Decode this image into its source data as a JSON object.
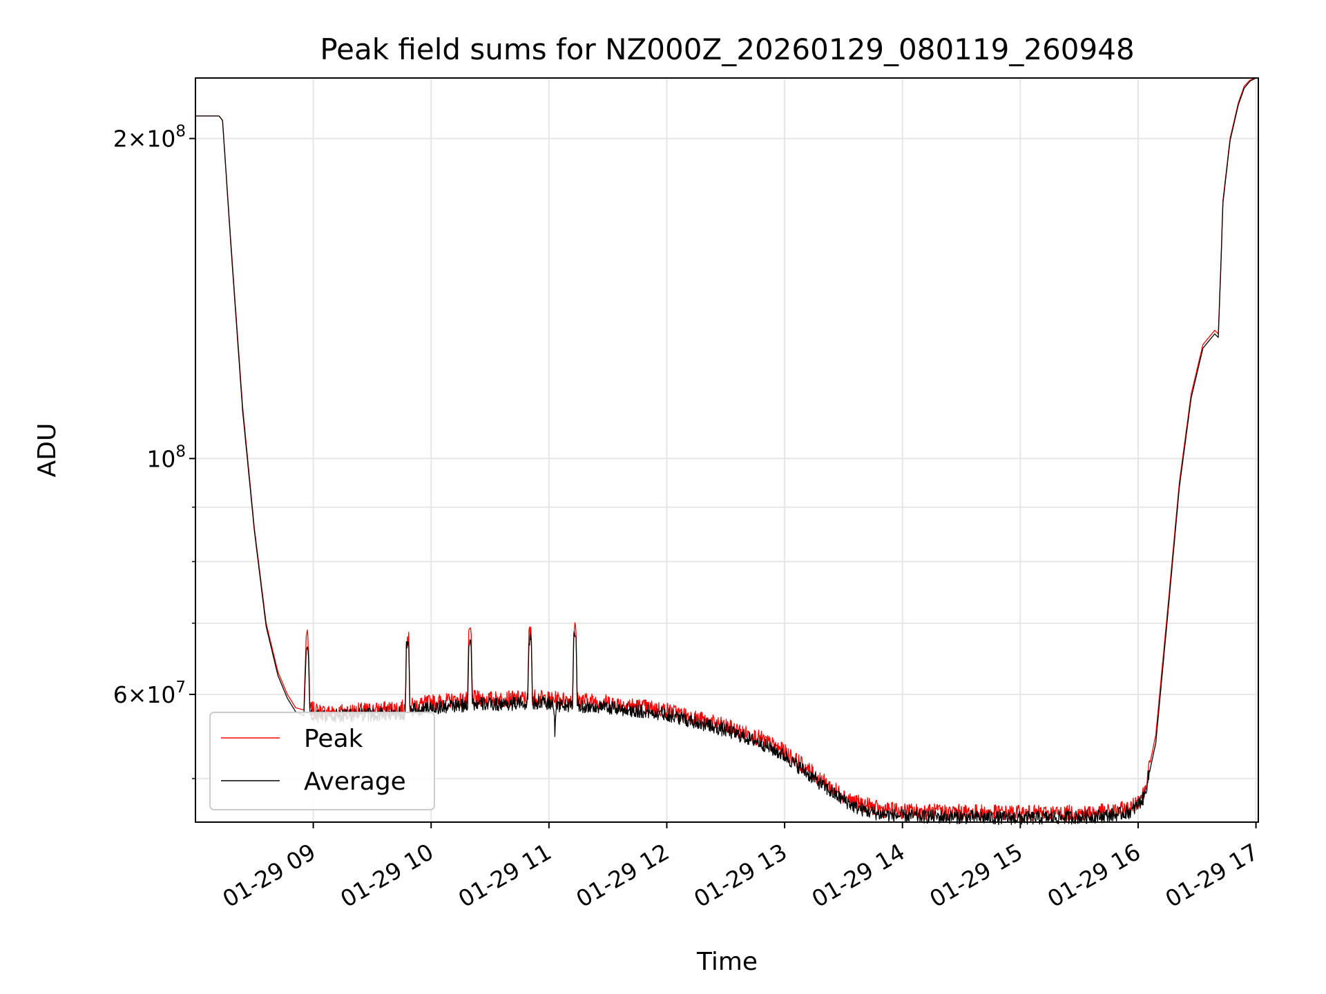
{
  "chart_data": {
    "type": "line",
    "title": "Peak field sums for NZ000Z_20260129_080119_260948",
    "xlabel": "Time",
    "ylabel": "ADU",
    "yscale": "log",
    "grid": true,
    "legend_position": "lower-left",
    "xlim_hours": [
      8.0,
      17.02
    ],
    "ylim": [
      45500000,
      228000000
    ],
    "x_ticks": [
      {
        "hour": 9,
        "label": "01-29 09"
      },
      {
        "hour": 10,
        "label": "01-29 10"
      },
      {
        "hour": 11,
        "label": "01-29 11"
      },
      {
        "hour": 12,
        "label": "01-29 12"
      },
      {
        "hour": 13,
        "label": "01-29 13"
      },
      {
        "hour": 14,
        "label": "01-29 14"
      },
      {
        "hour": 15,
        "label": "01-29 15"
      },
      {
        "hour": 16,
        "label": "01-29 16"
      },
      {
        "hour": 17,
        "label": "01-29 17"
      }
    ],
    "y_major_ticks": [
      {
        "value": 200000000,
        "mant": "2",
        "exp": "8"
      },
      {
        "value": 100000000,
        "mant": "",
        "exp": "8"
      },
      {
        "value": 60000000,
        "mant": "6",
        "exp": "7"
      }
    ],
    "y_minor_ticks": [
      50000000,
      70000000,
      80000000,
      90000000
    ],
    "series": [
      {
        "name": "Peak",
        "color": "#ff0000",
        "x": [
          8.0,
          8.2,
          8.23,
          8.3,
          8.4,
          8.5,
          8.6,
          8.7,
          8.78,
          8.85,
          8.92,
          8.94,
          8.95,
          8.96,
          8.97,
          9.0,
          9.1,
          9.2,
          9.5,
          9.78,
          9.79,
          9.8,
          9.81,
          9.82,
          10.0,
          10.31,
          10.32,
          10.33,
          10.34,
          10.35,
          10.5,
          10.82,
          10.83,
          10.84,
          10.85,
          10.86,
          11.0,
          11.2,
          11.21,
          11.22,
          11.23,
          11.24,
          11.5,
          12.0,
          12.5,
          12.8,
          13.0,
          13.2,
          13.4,
          13.6,
          13.7,
          13.8,
          14.0,
          14.5,
          15.0,
          15.5,
          15.8,
          15.95,
          16.05,
          16.15,
          16.25,
          16.35,
          16.45,
          16.55,
          16.65,
          16.68,
          16.7,
          16.72,
          16.78,
          16.85,
          16.9,
          16.95,
          17.0
        ],
        "y": [
          210000000,
          210000000,
          208000000,
          160000000,
          112000000,
          86000000,
          70000000,
          63000000,
          60000000,
          58300000,
          58000000,
          68000000,
          69000000,
          66000000,
          58200000,
          58000000,
          57700000,
          57800000,
          58000000,
          58300000,
          67800000,
          68000000,
          67500000,
          58500000,
          59000000,
          59300000,
          68500000,
          69000000,
          68000000,
          59500000,
          59400000,
          59500000,
          68500000,
          69000000,
          68000000,
          59700000,
          59400000,
          59300000,
          68800000,
          69500000,
          68000000,
          59300000,
          59000000,
          58000000,
          56000000,
          54500000,
          53000000,
          51000000,
          49000000,
          47500000,
          47200000,
          46800000,
          46600000,
          46500000,
          46400000,
          46400000,
          46600000,
          47000000,
          48500000,
          55000000,
          72000000,
          95000000,
          115000000,
          128000000,
          132000000,
          131000000,
          150000000,
          175000000,
          200000000,
          216000000,
          224000000,
          227000000,
          228000000
        ]
      },
      {
        "name": "Average",
        "color": "#000000",
        "x": [
          8.0,
          8.2,
          8.23,
          8.3,
          8.4,
          8.5,
          8.6,
          8.7,
          8.78,
          8.85,
          8.92,
          8.94,
          8.95,
          8.96,
          8.97,
          9.0,
          9.1,
          9.2,
          9.5,
          9.78,
          9.79,
          9.8,
          9.81,
          9.82,
          10.0,
          10.31,
          10.32,
          10.33,
          10.34,
          10.35,
          10.5,
          10.82,
          10.83,
          10.84,
          10.85,
          10.86,
          11.0,
          11.04,
          11.05,
          11.06,
          11.2,
          11.21,
          11.22,
          11.23,
          11.24,
          11.5,
          12.0,
          12.5,
          12.8,
          13.0,
          13.2,
          13.4,
          13.6,
          13.7,
          13.8,
          14.0,
          14.5,
          15.0,
          15.5,
          15.8,
          15.95,
          16.05,
          16.15,
          16.25,
          16.35,
          16.45,
          16.55,
          16.65,
          16.68,
          16.7,
          16.72,
          16.78,
          16.85,
          16.9,
          16.95,
          17.0
        ],
        "y": [
          210000000,
          210000000,
          208000000,
          159000000,
          111000000,
          85500000,
          69500000,
          62500000,
          59500000,
          57800000,
          57300000,
          66000000,
          66500000,
          65500000,
          57500000,
          57200000,
          57100000,
          57300000,
          57400000,
          57600000,
          66500000,
          67000000,
          66500000,
          57900000,
          58300000,
          58600000,
          67000000,
          68000000,
          67000000,
          58800000,
          58700000,
          58900000,
          67500000,
          68000000,
          67000000,
          59000000,
          58800000,
          58700000,
          55500000,
          58600000,
          58600000,
          68000000,
          68500000,
          67500000,
          58500000,
          58300000,
          57500000,
          55500000,
          54000000,
          52500000,
          50500000,
          48500000,
          47000000,
          46600000,
          46300000,
          46100000,
          46000000,
          45900000,
          46000000,
          46200000,
          46600000,
          48000000,
          54000000,
          71000000,
          94000000,
          114000000,
          127000000,
          131000000,
          130000000,
          149000000,
          174000000,
          199000000,
          215000000,
          223000000,
          226500000,
          228000000
        ]
      }
    ]
  }
}
